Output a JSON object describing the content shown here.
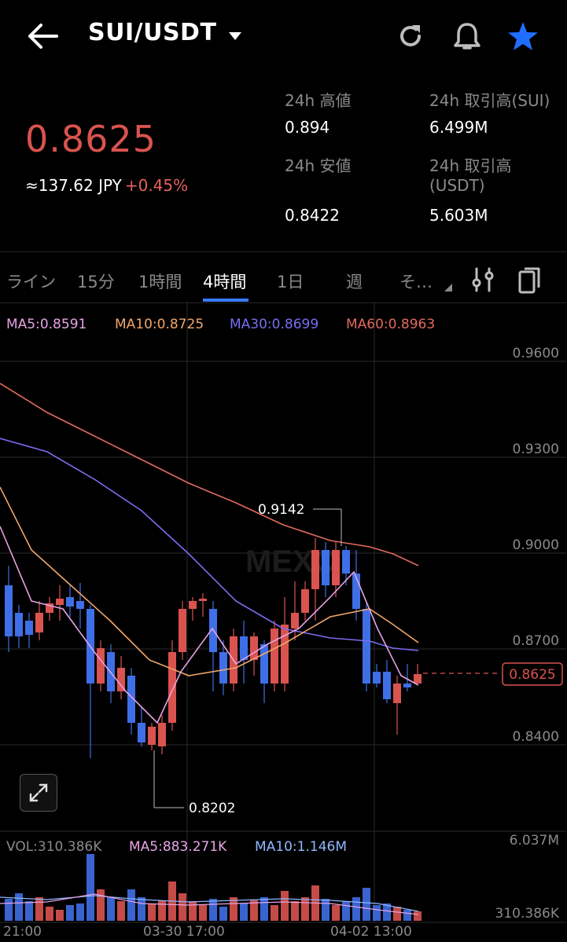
{
  "header": {
    "pair": "SUI/USDT",
    "dropdown_icon": "caret-down-icon",
    "icons": [
      "back-arrow-icon",
      "refresh-icon",
      "bell-icon",
      "star-icon"
    ],
    "star_color": "#1f6fff"
  },
  "ticker": {
    "price": "0.8625",
    "jpy": "≈137.62 JPY",
    "change": "+0.45%",
    "price_color": "#d9534f"
  },
  "stats": {
    "high_label": "24h 高値",
    "high_value": "0.894",
    "low_label": "24h 安値",
    "low_value": "0.8422",
    "vol_sui_label": "24h 取引高(SUI)",
    "vol_sui_value": "6.499M",
    "vol_usdt_label_1": "24h 取引高",
    "vol_usdt_label_2": "(USDT)",
    "vol_usdt_value": "5.603M"
  },
  "tabs": {
    "items": [
      "ライン",
      "15分",
      "1時間",
      "4時間",
      "1日",
      "週",
      "そ…"
    ],
    "active": "4時間",
    "icons": [
      "settings-sliders-icon",
      "rotate-icon"
    ]
  },
  "indicators": {
    "ma5": "MA5:0.8591",
    "ma10": "MA10:0.8725",
    "ma30": "MA30:0.8699",
    "ma60": "MA60:0.8963",
    "colors": {
      "ma5": "#e7a3e6",
      "ma10": "#f1a66a",
      "ma30": "#7b6cf0",
      "ma60": "#e46a5e"
    }
  },
  "price_axis": [
    "0.9600",
    "0.9300",
    "0.9000",
    "0.8700",
    "0.8400"
  ],
  "current_price_tag": "0.8625",
  "annotations": {
    "high": "0.9142",
    "low": "0.8202"
  },
  "watermark": "MEXC",
  "expand_icon": "expand-icon",
  "volume": {
    "vol": "VOL:310.386K",
    "ma5": "MA5:883.271K",
    "ma10": "MA10:1.146M",
    "axis_top": "6.037M",
    "axis_bottom": "310.386K",
    "colors": {
      "vol": "#8a8a8a",
      "ma5": "#e7a3e6",
      "ma10": "#8fb8ff"
    }
  },
  "time_axis": [
    "21:00",
    "03-30 17:00",
    "04-02 13:00"
  ],
  "colors": {
    "up": "#d9534f",
    "down": "#3f6fe6"
  }
}
